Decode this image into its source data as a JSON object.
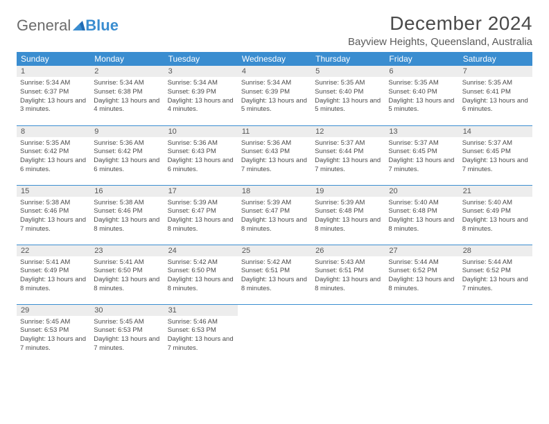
{
  "logo": {
    "text1": "General",
    "text2": "Blue"
  },
  "title": "December 2024",
  "subtitle": "Bayview Heights, Queensland, Australia",
  "colors": {
    "header_bg": "#3a8dd0",
    "header_fg": "#ffffff",
    "daynum_bg": "#ededed",
    "row_border": "#3a8dd0",
    "text": "#4a4a4a"
  },
  "fontsizes": {
    "title": 28,
    "subtitle": 15,
    "dayheader": 12,
    "daynum": 11,
    "body": 9.5
  },
  "day_headers": [
    "Sunday",
    "Monday",
    "Tuesday",
    "Wednesday",
    "Thursday",
    "Friday",
    "Saturday"
  ],
  "weeks": [
    [
      {
        "n": "1",
        "sunrise": "5:34 AM",
        "sunset": "6:37 PM",
        "daylight": "13 hours and 3 minutes."
      },
      {
        "n": "2",
        "sunrise": "5:34 AM",
        "sunset": "6:38 PM",
        "daylight": "13 hours and 4 minutes."
      },
      {
        "n": "3",
        "sunrise": "5:34 AM",
        "sunset": "6:39 PM",
        "daylight": "13 hours and 4 minutes."
      },
      {
        "n": "4",
        "sunrise": "5:34 AM",
        "sunset": "6:39 PM",
        "daylight": "13 hours and 5 minutes."
      },
      {
        "n": "5",
        "sunrise": "5:35 AM",
        "sunset": "6:40 PM",
        "daylight": "13 hours and 5 minutes."
      },
      {
        "n": "6",
        "sunrise": "5:35 AM",
        "sunset": "6:40 PM",
        "daylight": "13 hours and 5 minutes."
      },
      {
        "n": "7",
        "sunrise": "5:35 AM",
        "sunset": "6:41 PM",
        "daylight": "13 hours and 6 minutes."
      }
    ],
    [
      {
        "n": "8",
        "sunrise": "5:35 AM",
        "sunset": "6:42 PM",
        "daylight": "13 hours and 6 minutes."
      },
      {
        "n": "9",
        "sunrise": "5:36 AM",
        "sunset": "6:42 PM",
        "daylight": "13 hours and 6 minutes."
      },
      {
        "n": "10",
        "sunrise": "5:36 AM",
        "sunset": "6:43 PM",
        "daylight": "13 hours and 6 minutes."
      },
      {
        "n": "11",
        "sunrise": "5:36 AM",
        "sunset": "6:43 PM",
        "daylight": "13 hours and 7 minutes."
      },
      {
        "n": "12",
        "sunrise": "5:37 AM",
        "sunset": "6:44 PM",
        "daylight": "13 hours and 7 minutes."
      },
      {
        "n": "13",
        "sunrise": "5:37 AM",
        "sunset": "6:45 PM",
        "daylight": "13 hours and 7 minutes."
      },
      {
        "n": "14",
        "sunrise": "5:37 AM",
        "sunset": "6:45 PM",
        "daylight": "13 hours and 7 minutes."
      }
    ],
    [
      {
        "n": "15",
        "sunrise": "5:38 AM",
        "sunset": "6:46 PM",
        "daylight": "13 hours and 7 minutes."
      },
      {
        "n": "16",
        "sunrise": "5:38 AM",
        "sunset": "6:46 PM",
        "daylight": "13 hours and 8 minutes."
      },
      {
        "n": "17",
        "sunrise": "5:39 AM",
        "sunset": "6:47 PM",
        "daylight": "13 hours and 8 minutes."
      },
      {
        "n": "18",
        "sunrise": "5:39 AM",
        "sunset": "6:47 PM",
        "daylight": "13 hours and 8 minutes."
      },
      {
        "n": "19",
        "sunrise": "5:39 AM",
        "sunset": "6:48 PM",
        "daylight": "13 hours and 8 minutes."
      },
      {
        "n": "20",
        "sunrise": "5:40 AM",
        "sunset": "6:48 PM",
        "daylight": "13 hours and 8 minutes."
      },
      {
        "n": "21",
        "sunrise": "5:40 AM",
        "sunset": "6:49 PM",
        "daylight": "13 hours and 8 minutes."
      }
    ],
    [
      {
        "n": "22",
        "sunrise": "5:41 AM",
        "sunset": "6:49 PM",
        "daylight": "13 hours and 8 minutes."
      },
      {
        "n": "23",
        "sunrise": "5:41 AM",
        "sunset": "6:50 PM",
        "daylight": "13 hours and 8 minutes."
      },
      {
        "n": "24",
        "sunrise": "5:42 AM",
        "sunset": "6:50 PM",
        "daylight": "13 hours and 8 minutes."
      },
      {
        "n": "25",
        "sunrise": "5:42 AM",
        "sunset": "6:51 PM",
        "daylight": "13 hours and 8 minutes."
      },
      {
        "n": "26",
        "sunrise": "5:43 AM",
        "sunset": "6:51 PM",
        "daylight": "13 hours and 8 minutes."
      },
      {
        "n": "27",
        "sunrise": "5:44 AM",
        "sunset": "6:52 PM",
        "daylight": "13 hours and 8 minutes."
      },
      {
        "n": "28",
        "sunrise": "5:44 AM",
        "sunset": "6:52 PM",
        "daylight": "13 hours and 7 minutes."
      }
    ],
    [
      {
        "n": "29",
        "sunrise": "5:45 AM",
        "sunset": "6:53 PM",
        "daylight": "13 hours and 7 minutes."
      },
      {
        "n": "30",
        "sunrise": "5:45 AM",
        "sunset": "6:53 PM",
        "daylight": "13 hours and 7 minutes."
      },
      {
        "n": "31",
        "sunrise": "5:46 AM",
        "sunset": "6:53 PM",
        "daylight": "13 hours and 7 minutes."
      },
      null,
      null,
      null,
      null
    ]
  ],
  "labels": {
    "sunrise": "Sunrise:",
    "sunset": "Sunset:",
    "daylight": "Daylight:"
  }
}
